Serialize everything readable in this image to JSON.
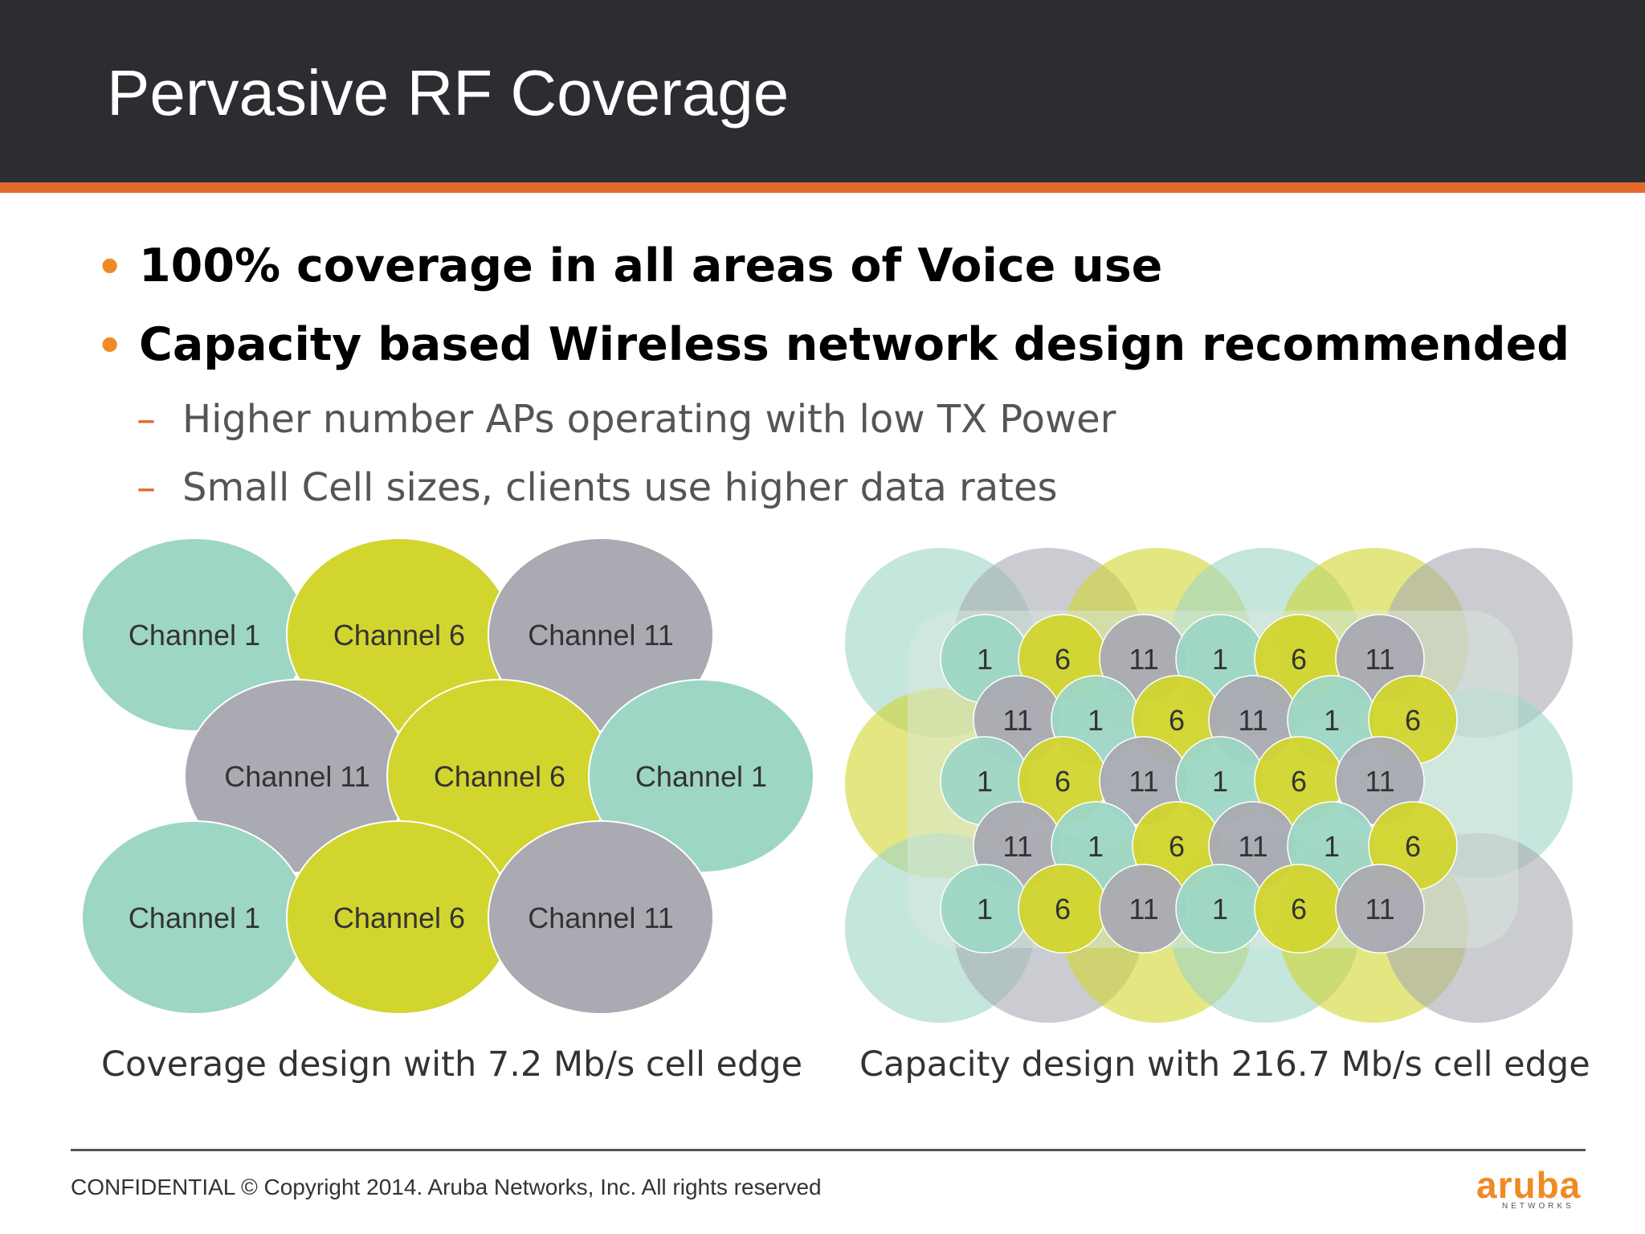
{
  "slide": {
    "title": "Pervasive RF Coverage",
    "bullets": [
      "100% coverage in all areas of Voice use",
      "Capacity based Wireless network design recommended"
    ],
    "sub_bullets": [
      "Higher number APs operating with low TX Power",
      "Small Cell sizes, clients use higher data rates"
    ],
    "bullet_marker": "•",
    "sub_marker": "–"
  },
  "coverage_diagram": {
    "caption": "Coverage design with 7.2 Mb/s cell edge",
    "cells": [
      {
        "label": "Channel 1",
        "channel": 1
      },
      {
        "label": "Channel 6",
        "channel": 6
      },
      {
        "label": "Channel 11",
        "channel": 11
      },
      {
        "label": "Channel 11",
        "channel": 11
      },
      {
        "label": "Channel 6",
        "channel": 6
      },
      {
        "label": "Channel 1",
        "channel": 1
      },
      {
        "label": "Channel 1",
        "channel": 1
      },
      {
        "label": "Channel 6",
        "channel": 6
      },
      {
        "label": "Channel 11",
        "channel": 11
      }
    ]
  },
  "capacity_diagram": {
    "caption": "Capacity design with 216.7 Mb/s cell edge",
    "rows": [
      [
        "1",
        "6",
        "11",
        "1",
        "6",
        "11"
      ],
      [
        "11",
        "1",
        "6",
        "11",
        "1",
        "6"
      ],
      [
        "1",
        "6",
        "11",
        "1",
        "6",
        "11"
      ],
      [
        "11",
        "1",
        "6",
        "11",
        "1",
        "6"
      ],
      [
        "1",
        "6",
        "11",
        "1",
        "6",
        "11"
      ]
    ]
  },
  "channel_colors": {
    "1": "#9dd6c4",
    "6": "#d2d52e",
    "11": "#a9aab2"
  },
  "footer": {
    "copyright": "CONFIDENTIAL © Copyright 2014. Aruba Networks, Inc. All rights reserved",
    "logo_text": "aruba",
    "logo_subtext": "NETWORKS"
  },
  "colors": {
    "header_bg": "#2b2d31",
    "accent": "#e26a2c",
    "bullet": "#f08a24"
  }
}
